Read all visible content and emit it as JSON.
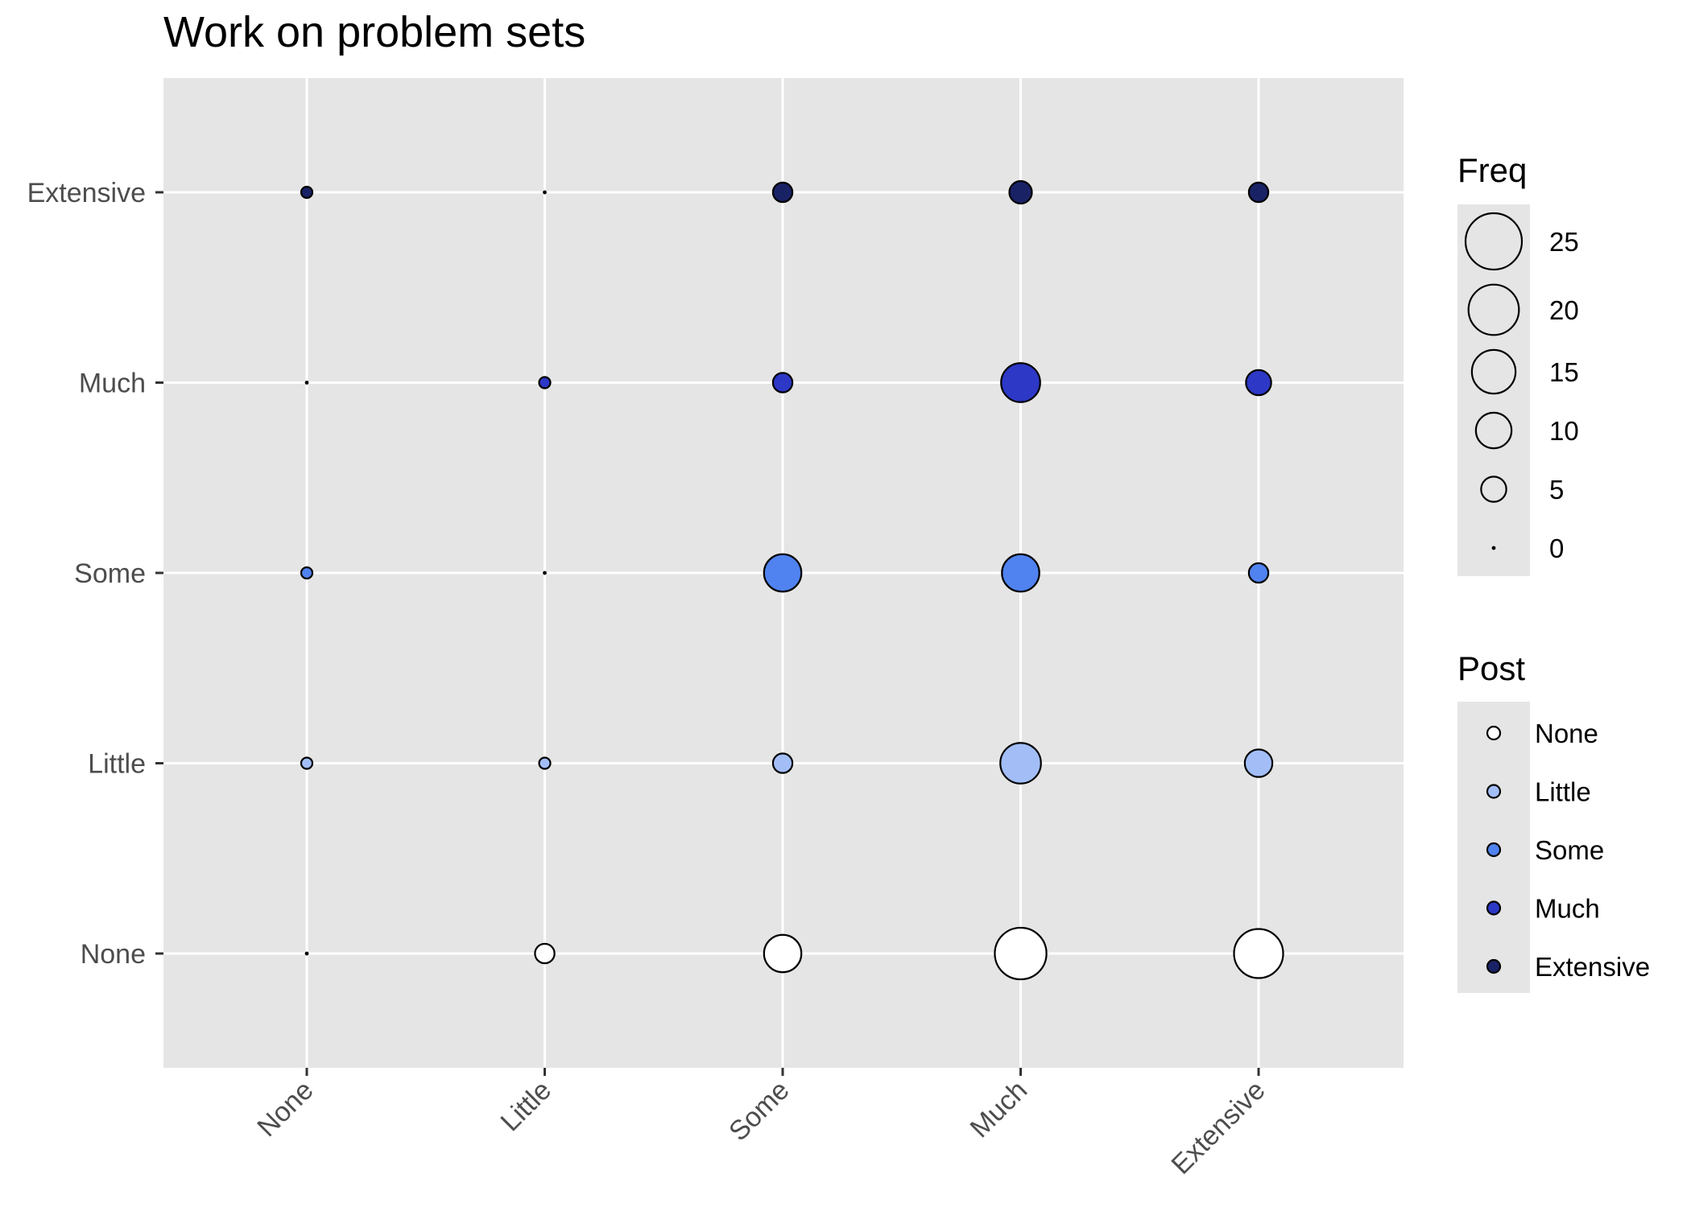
{
  "chart_data": {
    "type": "scatter",
    "title": "Work on problem sets",
    "xlabel": "",
    "ylabel": "",
    "x_categories": [
      "None",
      "Little",
      "Some",
      "Much",
      "Extensive"
    ],
    "y_categories": [
      "None",
      "Little",
      "Some",
      "Much",
      "Extensive"
    ],
    "grid": true,
    "legend_position": "right",
    "size_legend": {
      "title": "Freq",
      "breaks": [
        25,
        20,
        15,
        10,
        5,
        0
      ]
    },
    "color_legend": {
      "title": "Post",
      "entries": [
        {
          "label": "None",
          "color": "#ffffff"
        },
        {
          "label": "Little",
          "color": "#a3bef7"
        },
        {
          "label": "Some",
          "color": "#5083f0"
        },
        {
          "label": "Much",
          "color": "#2d38c6"
        },
        {
          "label": "Extensive",
          "color": "#1a2266"
        }
      ]
    },
    "series": [
      {
        "name": "None",
        "values": [
          0,
          3,
          11,
          21,
          19
        ]
      },
      {
        "name": "Little",
        "values": [
          1,
          1,
          3,
          13,
          6
        ]
      },
      {
        "name": "Some",
        "values": [
          1,
          0,
          11,
          11,
          3
        ]
      },
      {
        "name": "Much",
        "values": [
          0,
          1,
          3,
          12,
          5
        ]
      },
      {
        "name": "Extensive",
        "values": [
          1,
          0,
          3,
          4,
          3
        ]
      }
    ]
  }
}
